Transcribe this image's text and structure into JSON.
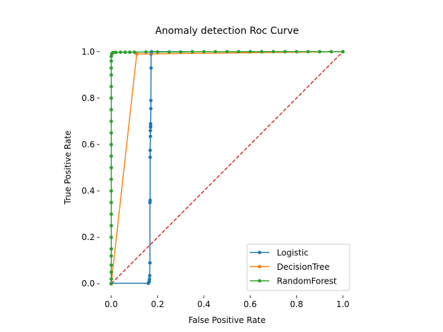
{
  "chart_data": {
    "type": "line",
    "title": "Anomaly detection Roc Curve",
    "xlabel": "False Positive Rate",
    "ylabel": "True Positive Rate",
    "xlim": [
      -0.05,
      1.05
    ],
    "ylim": [
      -0.05,
      1.05
    ],
    "xticks": [
      "0.0",
      "0.2",
      "0.4",
      "0.6",
      "0.8",
      "1.0"
    ],
    "yticks": [
      "0.0",
      "0.2",
      "0.4",
      "0.6",
      "0.8",
      "1.0"
    ],
    "grid": false,
    "legend_position": "lower-right",
    "colors": {
      "Logistic": "#1f77b4",
      "DecisionTree": "#ff7f0e",
      "RandomForest": "#2ca02c",
      "diagonal": "#d62728"
    },
    "series": [
      {
        "name": "Logistic",
        "x": [
          0.0,
          0.0,
          0.16,
          0.162,
          0.164,
          0.165,
          0.166,
          0.167,
          0.167,
          0.168,
          0.168,
          0.168,
          0.169,
          0.169,
          0.17,
          0.17,
          0.17,
          0.171,
          0.171,
          0.172,
          0.172,
          0.173,
          0.174,
          1.0
        ],
        "y": [
          0.0,
          0.002,
          0.002,
          0.005,
          0.01,
          0.02,
          0.035,
          0.09,
          0.35,
          0.36,
          0.545,
          0.575,
          0.635,
          0.66,
          0.675,
          0.68,
          0.69,
          0.755,
          0.79,
          0.93,
          0.99,
          0.995,
          1.0,
          1.0
        ]
      },
      {
        "name": "DecisionTree",
        "x": [
          0.0,
          0.11,
          1.0
        ],
        "y": [
          0.0,
          0.99,
          1.0
        ]
      },
      {
        "name": "RandomForest",
        "x": [
          0.0,
          0.0,
          0.0,
          0.0,
          0.0,
          0.0,
          0.0,
          0.0,
          0.0,
          0.0,
          0.0,
          0.0,
          0.0,
          0.0,
          0.0,
          0.0,
          0.0,
          0.0,
          0.0,
          0.0,
          0.0,
          0.0,
          0.0,
          0.0,
          0.002,
          0.004,
          0.006,
          0.008,
          0.01,
          0.02,
          0.04,
          0.06,
          0.08,
          0.1,
          0.15,
          0.2,
          0.25,
          0.3,
          0.35,
          0.4,
          0.45,
          0.5,
          0.55,
          0.6,
          0.65,
          0.7,
          0.75,
          0.8,
          0.85,
          0.9,
          0.95,
          1.0
        ],
        "y": [
          0.0,
          0.02,
          0.05,
          0.08,
          0.12,
          0.15,
          0.2,
          0.25,
          0.3,
          0.35,
          0.4,
          0.45,
          0.5,
          0.55,
          0.6,
          0.65,
          0.7,
          0.75,
          0.8,
          0.85,
          0.9,
          0.93,
          0.96,
          0.98,
          0.99,
          0.993,
          0.995,
          0.996,
          0.997,
          0.997,
          0.998,
          0.998,
          0.998,
          0.998,
          0.999,
          0.999,
          0.999,
          0.999,
          1.0,
          1.0,
          1.0,
          1.0,
          1.0,
          1.0,
          1.0,
          1.0,
          1.0,
          1.0,
          1.0,
          1.0,
          1.0,
          1.0
        ]
      }
    ],
    "reference_line": {
      "x": [
        0.0,
        1.0
      ],
      "y": [
        0.0,
        1.0
      ],
      "style": "dashed"
    }
  }
}
